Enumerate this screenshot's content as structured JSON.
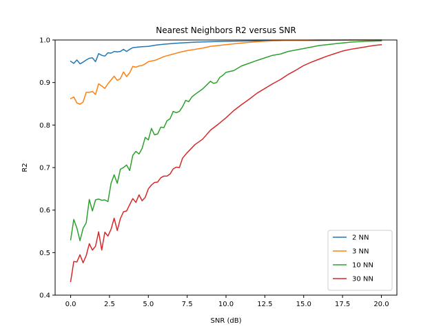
{
  "chart_data": {
    "type": "line",
    "title": "Nearest Neighbors R2 versus SNR",
    "xlabel": "SNR (dB)",
    "ylabel": "R2",
    "xlim": [
      -1.0,
      21.0
    ],
    "ylim": [
      0.4,
      1.0
    ],
    "xticks": [
      0.0,
      2.5,
      5.0,
      7.5,
      10.0,
      12.5,
      15.0,
      17.5,
      20.0
    ],
    "xtick_labels": [
      "0.0",
      "2.5",
      "5.0",
      "7.5",
      "10.0",
      "12.5",
      "15.0",
      "17.5",
      "20.0"
    ],
    "yticks": [
      0.4,
      0.5,
      0.6,
      0.7,
      0.8,
      0.9,
      1.0
    ],
    "ytick_labels": [
      "0.4",
      "0.5",
      "0.6",
      "0.7",
      "0.8",
      "0.9",
      "1.0"
    ],
    "grid": false,
    "legend_position": "lower-right",
    "series": [
      {
        "name": "2 NN",
        "color": "#1f77b4",
        "x": [
          0.0,
          0.2,
          0.4,
          0.6,
          0.8,
          1.0,
          1.2,
          1.4,
          1.6,
          1.8,
          2.0,
          2.2,
          2.4,
          2.6,
          2.8,
          3.0,
          3.2,
          3.4,
          3.6,
          3.8,
          4.0,
          4.5,
          5.0,
          5.5,
          6.0,
          7.0,
          8.0,
          9.0,
          10.0,
          12.0,
          14.0,
          16.0,
          18.0,
          20.0
        ],
        "y": [
          0.95,
          0.945,
          0.953,
          0.944,
          0.948,
          0.953,
          0.957,
          0.958,
          0.949,
          0.968,
          0.964,
          0.962,
          0.97,
          0.969,
          0.973,
          0.972,
          0.973,
          0.978,
          0.973,
          0.978,
          0.982,
          0.984,
          0.985,
          0.988,
          0.99,
          0.993,
          0.995,
          0.996,
          0.997,
          0.998,
          0.999,
          0.999,
          1.0,
          1.0
        ]
      },
      {
        "name": "3 NN",
        "color": "#ff7f0e",
        "x": [
          0.0,
          0.2,
          0.4,
          0.6,
          0.8,
          1.0,
          1.2,
          1.4,
          1.6,
          1.8,
          2.0,
          2.2,
          2.4,
          2.6,
          2.8,
          3.0,
          3.2,
          3.4,
          3.6,
          3.8,
          4.0,
          4.2,
          4.4,
          4.6,
          4.8,
          5.0,
          5.5,
          6.0,
          6.5,
          7.0,
          7.5,
          8.0,
          8.5,
          9.0,
          10.0,
          11.0,
          12.0,
          13.0,
          14.0,
          16.0,
          18.0,
          20.0
        ],
        "y": [
          0.862,
          0.866,
          0.852,
          0.849,
          0.854,
          0.877,
          0.877,
          0.879,
          0.872,
          0.897,
          0.892,
          0.886,
          0.897,
          0.906,
          0.915,
          0.905,
          0.909,
          0.925,
          0.914,
          0.923,
          0.938,
          0.936,
          0.939,
          0.94,
          0.944,
          0.949,
          0.953,
          0.961,
          0.966,
          0.971,
          0.975,
          0.978,
          0.981,
          0.985,
          0.989,
          0.993,
          0.996,
          0.998,
          0.999,
          1.0,
          1.0,
          1.0
        ]
      },
      {
        "name": "10 NN",
        "color": "#2ca02c",
        "x": [
          0.0,
          0.2,
          0.4,
          0.6,
          0.8,
          1.0,
          1.2,
          1.4,
          1.6,
          1.8,
          2.0,
          2.2,
          2.4,
          2.6,
          2.8,
          3.0,
          3.2,
          3.4,
          3.6,
          3.8,
          4.0,
          4.2,
          4.4,
          4.6,
          4.8,
          5.0,
          5.2,
          5.4,
          5.6,
          5.8,
          6.0,
          6.2,
          6.4,
          6.6,
          6.8,
          7.0,
          7.2,
          7.4,
          7.6,
          7.8,
          8.0,
          8.5,
          9.0,
          9.2,
          9.4,
          9.6,
          9.8,
          10.0,
          10.5,
          11.0,
          12.0,
          12.5,
          13.0,
          13.5,
          14.0,
          15.0,
          16.0,
          17.0,
          18.0,
          19.0,
          20.0
        ],
        "y": [
          0.53,
          0.578,
          0.558,
          0.528,
          0.557,
          0.57,
          0.625,
          0.598,
          0.624,
          0.626,
          0.623,
          0.624,
          0.62,
          0.663,
          0.683,
          0.663,
          0.696,
          0.7,
          0.706,
          0.693,
          0.729,
          0.738,
          0.732,
          0.745,
          0.771,
          0.765,
          0.792,
          0.777,
          0.779,
          0.795,
          0.794,
          0.81,
          0.815,
          0.832,
          0.829,
          0.832,
          0.843,
          0.858,
          0.855,
          0.866,
          0.872,
          0.885,
          0.903,
          0.898,
          0.9,
          0.912,
          0.917,
          0.924,
          0.928,
          0.939,
          0.952,
          0.958,
          0.964,
          0.967,
          0.973,
          0.98,
          0.987,
          0.991,
          0.995,
          0.997,
          0.998
        ]
      },
      {
        "name": "30 NN",
        "color": "#d62728",
        "x": [
          0.0,
          0.2,
          0.4,
          0.6,
          0.8,
          1.0,
          1.2,
          1.4,
          1.6,
          1.8,
          2.0,
          2.2,
          2.4,
          2.6,
          2.8,
          3.0,
          3.2,
          3.4,
          3.6,
          3.8,
          4.0,
          4.2,
          4.4,
          4.6,
          4.8,
          5.0,
          5.2,
          5.4,
          5.6,
          5.8,
          6.0,
          6.2,
          6.4,
          6.6,
          6.8,
          7.0,
          7.2,
          7.5,
          8.0,
          8.5,
          9.0,
          9.5,
          10.0,
          10.5,
          11.0,
          11.5,
          12.0,
          12.5,
          13.0,
          13.5,
          14.0,
          14.5,
          15.0,
          15.5,
          16.0,
          16.5,
          17.0,
          17.5,
          18.0,
          18.5,
          19.0,
          19.5,
          20.0
        ],
        "y": [
          0.432,
          0.479,
          0.478,
          0.495,
          0.476,
          0.493,
          0.521,
          0.506,
          0.515,
          0.549,
          0.506,
          0.548,
          0.539,
          0.555,
          0.581,
          0.552,
          0.58,
          0.596,
          0.598,
          0.613,
          0.627,
          0.618,
          0.636,
          0.622,
          0.63,
          0.65,
          0.659,
          0.665,
          0.666,
          0.676,
          0.68,
          0.68,
          0.685,
          0.697,
          0.701,
          0.7,
          0.722,
          0.735,
          0.754,
          0.767,
          0.788,
          0.802,
          0.817,
          0.834,
          0.848,
          0.861,
          0.875,
          0.886,
          0.897,
          0.907,
          0.919,
          0.929,
          0.94,
          0.948,
          0.955,
          0.962,
          0.968,
          0.974,
          0.978,
          0.981,
          0.984,
          0.987,
          0.989
        ]
      }
    ]
  }
}
